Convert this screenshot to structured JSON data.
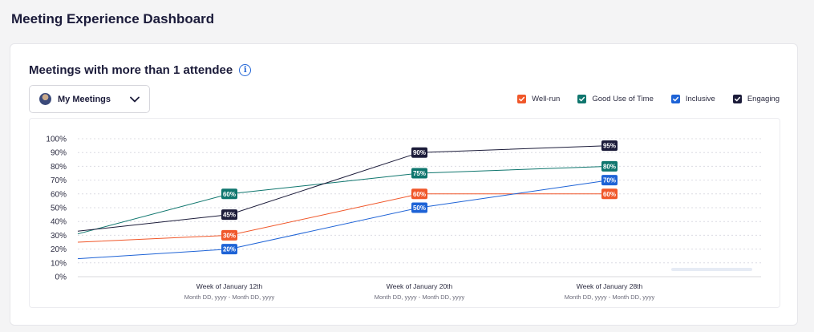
{
  "page": {
    "title": "Meeting Experience Dashboard"
  },
  "card": {
    "title": "Meetings with more than 1 attendee",
    "info_icon": "info-icon"
  },
  "filter": {
    "selected": "My Meetings",
    "icon": "chevron-down-icon"
  },
  "legend": [
    {
      "label": "Well-run",
      "color": "#f0572a"
    },
    {
      "label": "Good Use of Time",
      "color": "#0f766e"
    },
    {
      "label": "Inclusive",
      "color": "#1e63d6"
    },
    {
      "label": "Engaging",
      "color": "#1c1c3a"
    }
  ],
  "chart_data": {
    "type": "line",
    "x": [
      "",
      "Week of January 12th",
      "Week of January 20th",
      "Week of January 28th"
    ],
    "x_sublabels": [
      "",
      "Month DD, yyyy - Month DD, yyyy",
      "Month DD, yyyy - Month DD, yyyy",
      "Month DD, yyyy - Month DD, yyyy"
    ],
    "y_ticks": [
      "0%",
      "10%",
      "20%",
      "30%",
      "40%",
      "50%",
      "60%",
      "70%",
      "80%",
      "90%",
      "100%"
    ],
    "ylim": [
      0,
      100
    ],
    "grid": true,
    "legend_position": "top-right",
    "series": [
      {
        "name": "Well-run",
        "color": "#f0572a",
        "values": [
          25,
          30,
          60,
          60
        ],
        "labels": [
          null,
          "30%",
          "60%",
          "60%"
        ]
      },
      {
        "name": "Good Use of Time",
        "color": "#0f766e",
        "values": [
          31,
          60,
          75,
          80
        ],
        "labels": [
          null,
          "60%",
          "75%",
          "80%"
        ]
      },
      {
        "name": "Inclusive",
        "color": "#1e63d6",
        "values": [
          13,
          20,
          50,
          70
        ],
        "labels": [
          null,
          "20%",
          "50%",
          "70%"
        ]
      },
      {
        "name": "Engaging",
        "color": "#1c1c3a",
        "values": [
          33,
          45,
          90,
          95
        ],
        "labels": [
          null,
          "45%",
          "90%",
          "95%"
        ]
      }
    ]
  }
}
